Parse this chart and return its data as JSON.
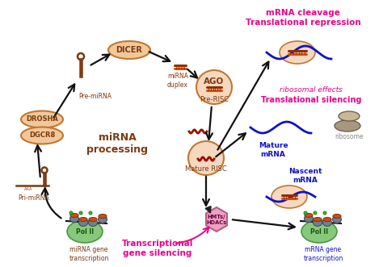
{
  "bg_color": "#ffffff",
  "colors": {
    "orange_fill": "#EEA868",
    "orange_edge": "#C07830",
    "light_peach": "#F2C89A",
    "peach_circle": "#F5D8C0",
    "dark_brown": "#7B3A10",
    "magenta": "#EE0088",
    "dark_red": "#991100",
    "blue": "#1111CC",
    "green": "#72C065",
    "black": "#111111",
    "gray_mid": "#888888",
    "ribosome_gray": "#A89880",
    "ribosome_light": "#C8B898",
    "chromatin_gray": "#607080",
    "chromatin_edge": "#405060",
    "orange_cap": "#CC5010",
    "histone_green": "#33BB33",
    "pink_hex": "#F0A0C0",
    "pink_hex_edge": "#B06080",
    "arrow_open_edge": "#222222"
  },
  "labels": {
    "dicer": "DICER",
    "drosha": "DROSHA",
    "dgcr8": "DGCR8",
    "ago": "AGO",
    "pre_mirna": "Pre-miRNA",
    "pri_mirna": "Pri-miRNA",
    "mirna_duplex": "miRNA\nduplex",
    "pre_risc": "Pre-RISC",
    "mature_risc": "Mature RISC",
    "mirna_processing": "miRNA\nprocessing",
    "mrna_cleavage": "mRNA cleavage",
    "trans_repression": "Translational repression",
    "ribosomal_effects": "ribosomal effects",
    "trans_silencing": "Translational silencing",
    "mature_mrna": "Mature\nmRNA",
    "nascent_mrna": "Nascent\nmRNA",
    "hmts_hdacs": "HMTs/\nHDACs",
    "transcriptional_silencing": "Transcriptional\ngene silencing",
    "mirna_gene_transcription": "miRNA gene\ntranscription",
    "mrna_gene_transcription": "mRNA gene\ntranscription",
    "pol_ii": "Pol II",
    "ribosome": "ribosome",
    "aaa": "AAA"
  }
}
